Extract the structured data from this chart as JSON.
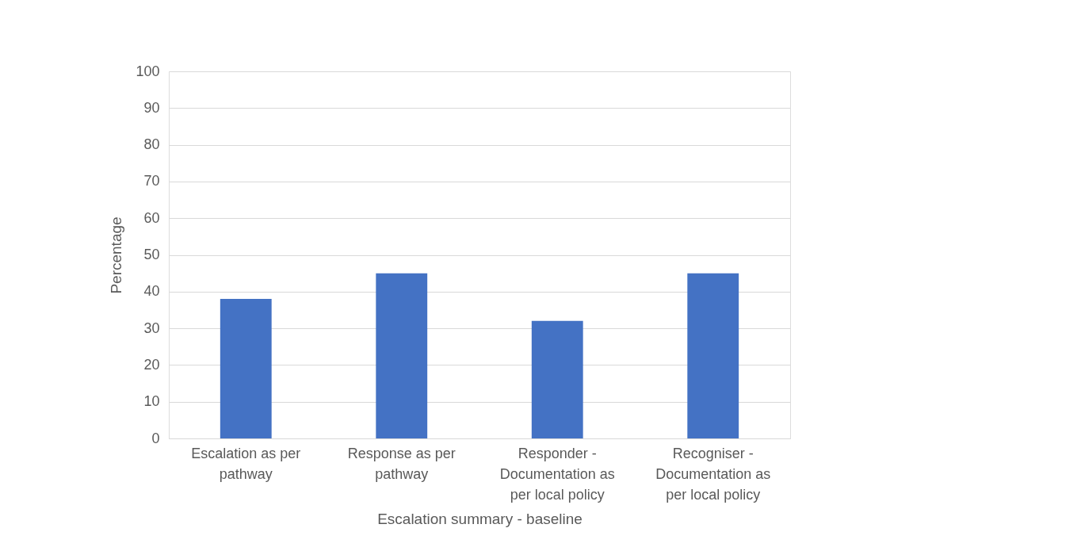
{
  "chart_data": {
    "type": "bar",
    "categories": [
      "Escalation as per pathway",
      "Response as per pathway",
      "Responder - Documentation as per local policy",
      "Recogniser - Documentation as per local policy"
    ],
    "values": [
      38,
      45,
      32,
      45
    ],
    "color": "#4472c4",
    "xlabel": "Escalation summary - baseline",
    "ylabel": "Percentage",
    "ylim": [
      0,
      100
    ],
    "yticks": [
      0,
      10,
      20,
      30,
      40,
      50,
      60,
      70,
      80,
      90,
      100
    ],
    "grid": "y"
  }
}
